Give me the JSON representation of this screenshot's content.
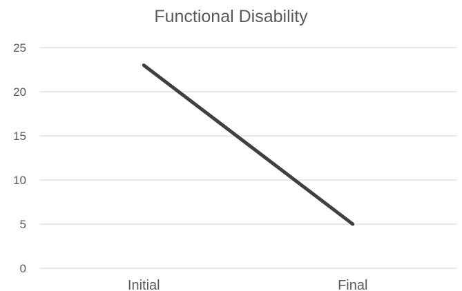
{
  "chart_data": {
    "type": "line",
    "title": "Functional Disability",
    "categories": [
      "Initial",
      "Final"
    ],
    "series": [
      {
        "values": [
          23,
          5
        ]
      }
    ],
    "xlabel": "",
    "ylabel": "",
    "ylim": [
      0,
      25
    ],
    "yticks": [
      0,
      5,
      10,
      15,
      20,
      25
    ],
    "grid": true,
    "legend": "none",
    "colors": {
      "line": "#404040",
      "grid": "#d9d9d9",
      "text": "#595959"
    }
  }
}
